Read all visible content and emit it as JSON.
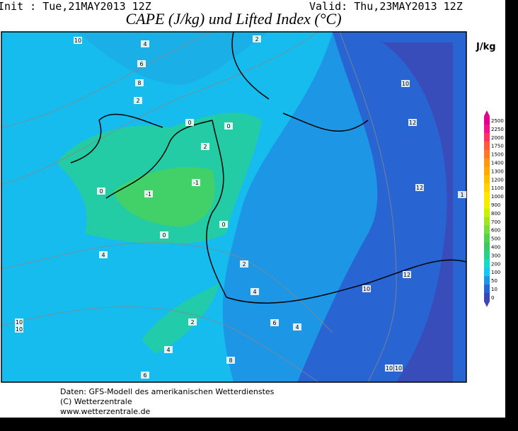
{
  "header": {
    "init": "Init : Tue,21MAY2013 12Z",
    "valid": "Valid: Thu,23MAY2013 12Z",
    "title": "CAPE (J/kg) und Lifted Index (°C)"
  },
  "legend": {
    "unit": "J/kg",
    "levels": [
      "2500",
      "2250",
      "2000",
      "1750",
      "1500",
      "1400",
      "1300",
      "1200",
      "1100",
      "1000",
      "900",
      "800",
      "700",
      "600",
      "500",
      "400",
      "300",
      "200",
      "100",
      "50",
      "10",
      "0"
    ],
    "colors": [
      "#e0008c",
      "#f0148c",
      "#ff3264",
      "#ff5a3c",
      "#ff7828",
      "#ff9614",
      "#ffaa00",
      "#ffbe00",
      "#ffd200",
      "#ffe600",
      "#f0f000",
      "#c8f000",
      "#a0e61e",
      "#78dc3c",
      "#50d250",
      "#3cc864",
      "#28d28c",
      "#14dcc8",
      "#14c8f0",
      "#1e96e6",
      "#2864d2",
      "#3c46b4"
    ]
  },
  "map": {
    "contour_labels": [
      "10",
      "4",
      "6",
      "8",
      "2",
      "2",
      "0",
      "0",
      "2",
      "-1",
      "-1",
      "0",
      "0",
      "0",
      "4",
      "2",
      "10",
      "12",
      "12",
      "12",
      "10",
      "4",
      "4",
      "6",
      "2",
      "4",
      "6",
      "8",
      "10",
      "10",
      "10",
      "10",
      "1"
    ]
  },
  "footer": {
    "lines": [
      "Daten: GFS-Modell des amerikanischen Wetterdienstes",
      "(C) Wetterzentrale",
      "www.wetterzentrale.de"
    ]
  }
}
